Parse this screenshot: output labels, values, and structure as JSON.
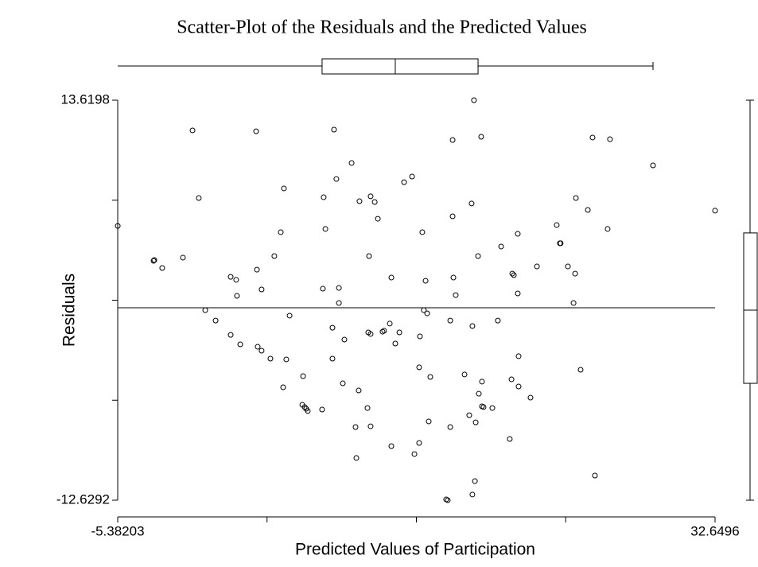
{
  "chart_data": {
    "type": "scatter",
    "title": "Scatter-Plot of the Residuals and the Predicted Values",
    "xlabel": "Predicted Values of Participation",
    "ylabel": "Residuals",
    "xlim": [
      -5.38203,
      32.6496
    ],
    "ylim": [
      -12.6292,
      13.6198
    ],
    "xticks": [
      -5.38203,
      32.6496
    ],
    "yticks": [
      -12.6292,
      13.6198
    ],
    "xminor_ticks": [
      4.12588,
      13.63378,
      23.14168
    ],
    "yminor_ticks": [
      -6.06695,
      0.4953,
      7.05755
    ],
    "hline": 0,
    "x_box": {
      "min": -5.38,
      "q1": 7.63,
      "median": 12.29,
      "q3": 17.56,
      "max": 28.7
    },
    "y_box": {
      "min": -12.63,
      "q1": -4.96,
      "median": -0.16,
      "q3": 4.91,
      "max": 13.62
    },
    "x": [
      -5.38,
      -3.1,
      -3.05,
      -2.55,
      -1.23,
      -0.62,
      -0.22,
      0.19,
      0.85,
      1.81,
      2.16,
      2.21,
      1.81,
      2.42,
      3.43,
      3.48,
      3.78,
      3.53,
      3.78,
      4.34,
      4.59,
      5.0,
      5.2,
      5.15,
      5.35,
      5.56,
      6.42,
      6.37,
      6.52,
      6.62,
      6.72,
      7.63,
      7.68,
      7.73,
      7.84,
      8.29,
      8.29,
      8.39,
      8.54,
      8.7,
      8.7,
      9.05,
      8.95,
      9.51,
      9.76,
      9.81,
      10.01,
      9.96,
      10.52,
      10.62,
      10.57,
      10.72,
      10.72,
      10.98,
      10.72,
      11.18,
      11.48,
      11.58,
      11.94,
      12.04,
      12.29,
      12.04,
      12.55,
      12.85,
      13.36,
      13.51,
      13.81,
      13.86,
      13.81,
      14.01,
      14.11,
      14.32,
      14.22,
      14.52,
      14.42,
      15.53,
      15.63,
      15.79,
      15.79,
      15.94,
      15.94,
      15.99,
      16.14,
      16.7,
      17.0,
      17.15,
      17.2,
      17.3,
      17.41,
      17.56,
      17.61,
      17.76,
      17.81,
      17.81,
      17.91,
      17.2,
      17.36,
      18.47,
      18.82,
      19.03,
      19.58,
      19.69,
      19.74,
      19.84,
      20.09,
      20.09,
      20.14,
      20.14,
      20.9,
      21.31,
      22.57,
      22.77,
      22.82,
      23.28,
      23.64,
      23.74,
      23.79,
      24.09,
      24.55,
      24.85,
      25.0,
      25.81,
      25.96,
      28.7,
      32.65
    ],
    "values": [
      5.37,
      3.08,
      3.13,
      2.61,
      3.29,
      11.64,
      7.2,
      -0.16,
      -0.84,
      2.03,
      1.83,
      0.78,
      -1.78,
      -2.4,
      11.58,
      2.5,
      1.2,
      -2.56,
      -2.82,
      -3.34,
      3.39,
      4.96,
      7.83,
      -5.22,
      -3.39,
      -0.52,
      -4.49,
      -6.37,
      -6.52,
      -6.63,
      -6.78,
      -6.68,
      1.25,
      7.25,
      5.17,
      -3.34,
      -1.31,
      11.69,
      8.45,
      1.3,
      0.31,
      -2.09,
      -4.96,
      9.5,
      -7.83,
      -9.86,
      6.99,
      -5.43,
      -6.58,
      3.39,
      -1.62,
      -1.72,
      7.31,
      6.94,
      -7.78,
      5.84,
      -1.57,
      -1.51,
      -1.04,
      1.98,
      -2.35,
      -9.08,
      -1.62,
      8.24,
      8.61,
      -9.6,
      -8.87,
      -1.88,
      -3.91,
      4.96,
      -0.16,
      -0.37,
      1.77,
      -4.54,
      -7.46,
      -12.58,
      -12.63,
      -0.84,
      -7.83,
      11.01,
      6.0,
      1.98,
      0.83,
      -4.38,
      -7.05,
      6.84,
      -1.2,
      13.62,
      -7.52,
      3.39,
      -5.64,
      11.22,
      -4.85,
      -6.47,
      -6.52,
      -12.26,
      -11.38,
      -6.58,
      -0.84,
      4.02,
      -8.61,
      -4.7,
      2.24,
      2.14,
      4.85,
      0.94,
      -3.18,
      -5.17,
      -5.9,
      2.71,
      5.43,
      4.23,
      4.23,
      2.71,
      0.31,
      2.24,
      7.2,
      -4.07,
      6.42,
      11.17,
      -11.01,
      5.17,
      11.06,
      9.34,
      6.37
    ]
  }
}
